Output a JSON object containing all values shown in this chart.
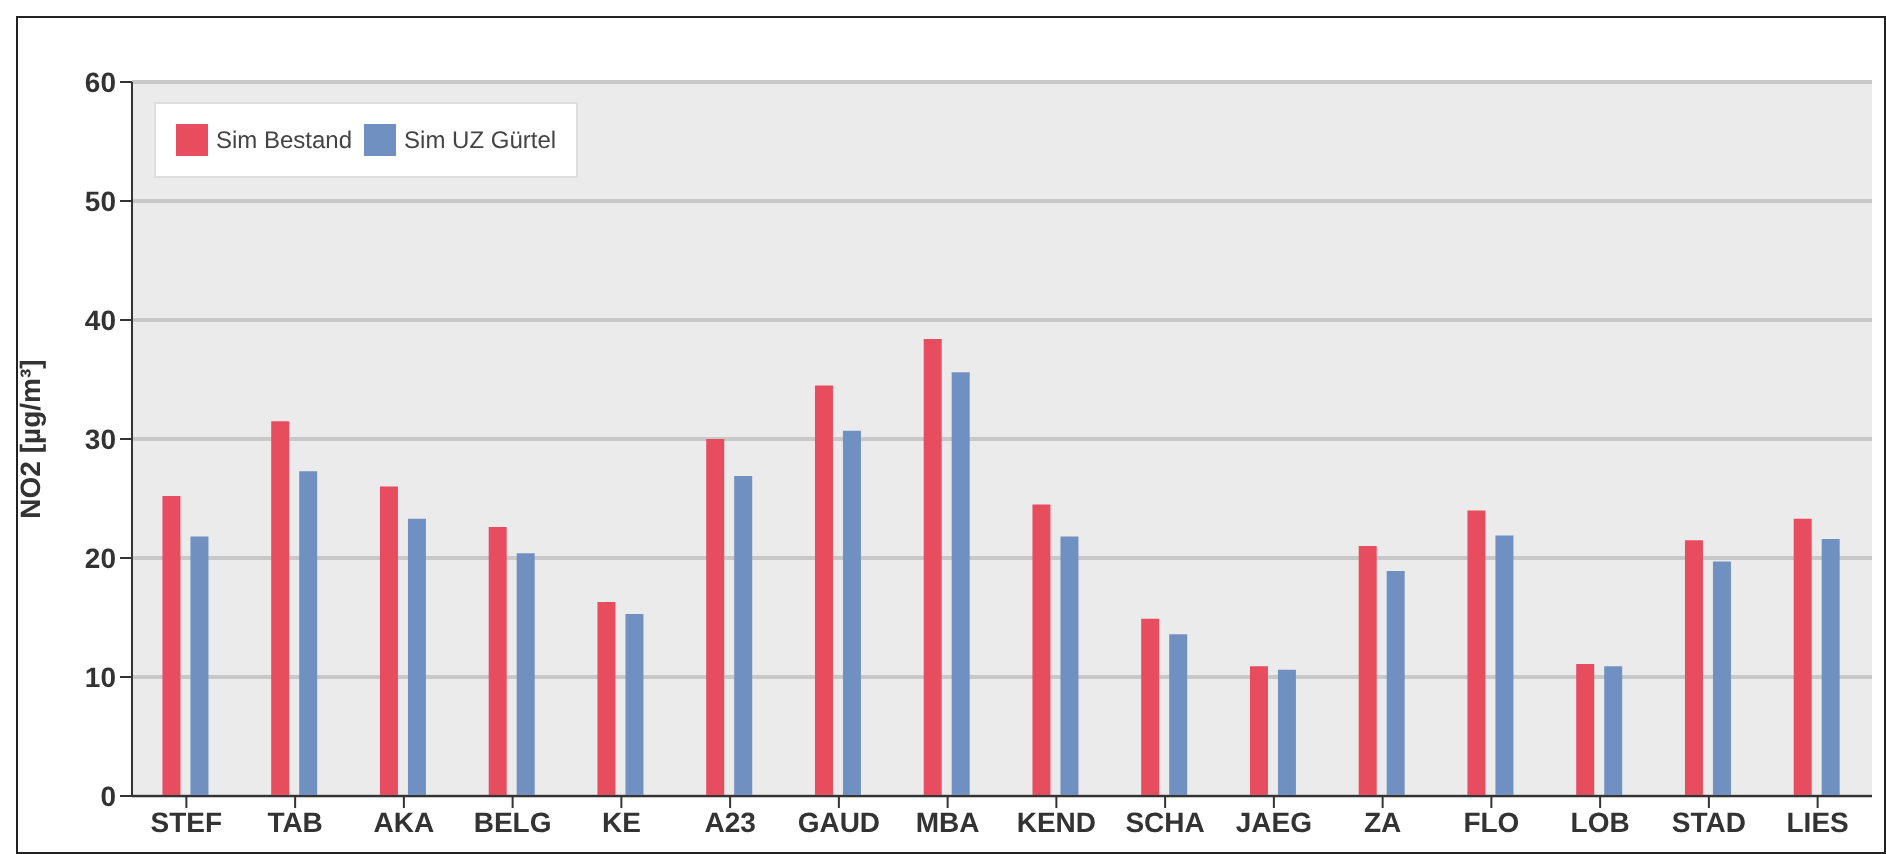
{
  "chart_data": {
    "type": "bar",
    "ylabel": "NO2 [µg/m³]",
    "categories": [
      "STEF",
      "TAB",
      "AKA",
      "BELG",
      "KE",
      "A23",
      "GAUD",
      "MBA",
      "KEND",
      "SCHA",
      "JAEG",
      "ZA",
      "FLO",
      "LOB",
      "STAD",
      "LIES"
    ],
    "series": [
      {
        "name": "Sim Bestand",
        "color": "#e84c5f",
        "values": [
          25.2,
          31.5,
          26,
          22.6,
          16.3,
          30,
          34.5,
          38.4,
          24.5,
          14.9,
          10.9,
          21,
          24,
          11.1,
          21.5,
          23.3
        ]
      },
      {
        "name": "Sim UZ Gürtel",
        "color": "#7190c2",
        "values": [
          21.8,
          27.3,
          23.3,
          20.4,
          15.3,
          26.9,
          30.7,
          35.6,
          21.8,
          13.6,
          10.6,
          18.9,
          21.9,
          10.9,
          19.7,
          21.6
        ]
      }
    ],
    "ylim": [
      0,
      60
    ],
    "yticks": [
      0,
      10,
      20,
      30,
      40,
      50,
      60
    ],
    "grid": "y",
    "legend": "top left"
  }
}
